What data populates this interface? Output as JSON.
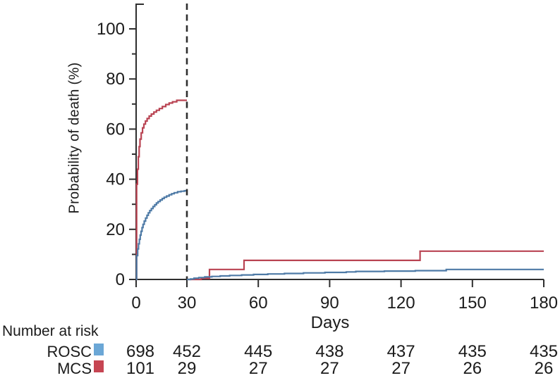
{
  "figure": {
    "y_axis": {
      "title": "Probability of death (%)"
    },
    "x_axis": {
      "title": "Days"
    },
    "colors": {
      "rosc_line": "#4e7aa6",
      "mcs_line": "#b94352",
      "rosc_swatch": "#6ba7d6",
      "mcs_swatch": "#c64552",
      "axis": "#2e2e2e",
      "dashed_line": "#2f2f2f",
      "text": "#1b1b1b"
    }
  },
  "chart_data": {
    "type": "line",
    "step": true,
    "title": "",
    "xlabel": "Days",
    "ylabel": "Probability of death (%)",
    "xlim": [
      0,
      180
    ],
    "ylim": [
      0,
      110
    ],
    "grid": false,
    "landmark_day": 30,
    "x_ticks": [
      0,
      30,
      60,
      90,
      120,
      150,
      180
    ],
    "y_ticks": [
      0,
      20,
      40,
      60,
      80,
      100
    ],
    "y_minor_ticks": [
      10,
      30,
      50,
      70,
      90
    ],
    "series": [
      {
        "name": "MCS",
        "color": "#b94352",
        "segments": [
          [
            [
              0,
              0
            ],
            [
              0.3,
              38
            ],
            [
              0.8,
              44
            ],
            [
              1.3,
              49
            ],
            [
              1.8,
              53
            ],
            [
              2.3,
              56
            ],
            [
              3,
              58.5
            ],
            [
              3.8,
              60.5
            ],
            [
              4.6,
              62
            ],
            [
              5.5,
              63.2
            ],
            [
              6.5,
              64.2
            ],
            [
              7.7,
              65.2
            ],
            [
              9,
              66
            ],
            [
              10.5,
              66.8
            ],
            [
              12,
              67.5
            ],
            [
              13.7,
              68.2
            ],
            [
              15.5,
              69
            ],
            [
              17.5,
              69.8
            ],
            [
              19.5,
              70.4
            ],
            [
              21.5,
              70.9
            ],
            [
              24,
              71.5
            ],
            [
              30,
              71.5
            ]
          ],
          [
            [
              30,
              0
            ],
            [
              36,
              0.4
            ],
            [
              39.5,
              4
            ],
            [
              54,
              7.6
            ],
            [
              128,
              11.3
            ],
            [
              180,
              11.3
            ]
          ]
        ]
      },
      {
        "name": "ROSC",
        "color": "#4e7aa6",
        "segments": [
          [
            [
              0,
              0
            ],
            [
              0.3,
              9.5
            ],
            [
              0.9,
              12.2
            ],
            [
              1.4,
              14.2
            ],
            [
              1.9,
              16
            ],
            [
              2.4,
              17.7
            ],
            [
              2.9,
              19.2
            ],
            [
              3.5,
              20.7
            ],
            [
              4.1,
              22
            ],
            [
              4.8,
              23.3
            ],
            [
              5.6,
              24.5
            ],
            [
              6.4,
              25.6
            ],
            [
              7.2,
              26.6
            ],
            [
              8.1,
              27.5
            ],
            [
              9,
              28.3
            ],
            [
              10,
              29.1
            ],
            [
              11,
              29.8
            ],
            [
              12,
              30.5
            ],
            [
              13,
              31.1
            ],
            [
              14.2,
              31.7
            ],
            [
              15.4,
              32.3
            ],
            [
              16.6,
              32.8
            ],
            [
              18,
              33.3
            ],
            [
              19.5,
              33.8
            ],
            [
              21,
              34.2
            ],
            [
              22.5,
              34.6
            ],
            [
              24.5,
              35
            ],
            [
              26.5,
              35.2
            ],
            [
              28.5,
              35.4
            ],
            [
              30,
              35.5
            ]
          ],
          [
            [
              30,
              0
            ],
            [
              31.5,
              0.2
            ],
            [
              33,
              0.5
            ],
            [
              35,
              0.75
            ],
            [
              37.5,
              1
            ],
            [
              40.5,
              1.2
            ],
            [
              44,
              1.4
            ],
            [
              48,
              1.6
            ],
            [
              53,
              1.8
            ],
            [
              58,
              2
            ],
            [
              64,
              2.2
            ],
            [
              71,
              2.4
            ],
            [
              79,
              2.6
            ],
            [
              88,
              2.8
            ],
            [
              97,
              3
            ],
            [
              101,
              3.2
            ],
            [
              113,
              3.35
            ],
            [
              126,
              3.5
            ],
            [
              139,
              4
            ],
            [
              180,
              4
            ]
          ]
        ]
      }
    ]
  },
  "risk_table": {
    "title": "Number at risk",
    "timepoints": [
      0,
      30,
      60,
      90,
      120,
      150,
      180
    ],
    "rows": [
      {
        "label": "ROSC",
        "swatch_color": "#6ba7d6",
        "values": [
          "698",
          "452",
          "445",
          "438",
          "437",
          "435",
          "435"
        ]
      },
      {
        "label": "MCS",
        "swatch_color": "#c64552",
        "values": [
          "101",
          "29",
          "27",
          "27",
          "27",
          "26",
          "26"
        ]
      }
    ]
  }
}
